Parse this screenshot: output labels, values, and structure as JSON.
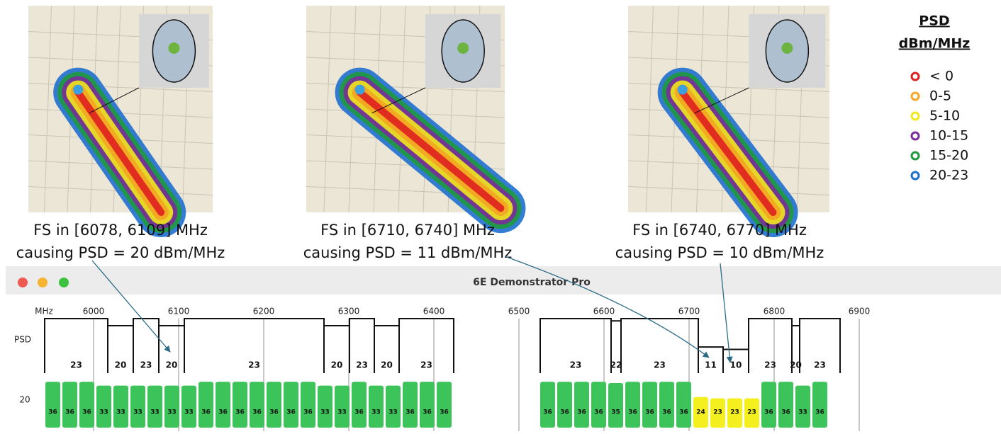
{
  "maps": [
    {
      "caption_line1": "FS in [6078, 6109] MHz",
      "caption_line2": "causing PSD = 20 dBm/MHz"
    },
    {
      "caption_line1": "FS in [6710, 6740] MHz",
      "caption_line2": "causing PSD = 11 dBm/MHz"
    },
    {
      "caption_line1": "FS in [6740, 6770] MHz",
      "caption_line2": "causing PSD = 10 dBm/MHz"
    }
  ],
  "legend": {
    "title": "PSD",
    "unit": "dBm/MHz",
    "items": [
      {
        "label": "< 0",
        "color": "#e02020"
      },
      {
        "label": "0-5",
        "color": "#f5a623"
      },
      {
        "label": "5-10",
        "color": "#f2e81c"
      },
      {
        "label": "10-15",
        "color": "#7b2d9b"
      },
      {
        "label": "15-20",
        "color": "#1f9a3c"
      },
      {
        "label": "20-23",
        "color": "#1f6fd1"
      }
    ]
  },
  "window": {
    "title": "6E Demonstrator Pro",
    "freq_unit": "MHz",
    "freq_labels": [
      "6000",
      "6100",
      "6200",
      "6300",
      "6400",
      "6500",
      "6600",
      "6700",
      "6800",
      "6900"
    ],
    "psd_label": "PSD",
    "row_label": "20",
    "left_psd": [
      23,
      20,
      23,
      20,
      23,
      20,
      23,
      20,
      23
    ],
    "right_psd": [
      23,
      22,
      23,
      11,
      10,
      23,
      20,
      23
    ],
    "left_channels": [
      {
        "value": 36,
        "color": "#3cc35a"
      },
      {
        "value": 36,
        "color": "#3cc35a"
      },
      {
        "value": 36,
        "color": "#3cc35a"
      },
      {
        "value": 33,
        "color": "#3cc35a"
      },
      {
        "value": 33,
        "color": "#3cc35a"
      },
      {
        "value": 33,
        "color": "#3cc35a"
      },
      {
        "value": 33,
        "color": "#3cc35a"
      },
      {
        "value": 33,
        "color": "#3cc35a"
      },
      {
        "value": 33,
        "color": "#3cc35a"
      },
      {
        "value": 36,
        "color": "#3cc35a"
      },
      {
        "value": 36,
        "color": "#3cc35a"
      },
      {
        "value": 36,
        "color": "#3cc35a"
      },
      {
        "value": 36,
        "color": "#3cc35a"
      },
      {
        "value": 36,
        "color": "#3cc35a"
      },
      {
        "value": 36,
        "color": "#3cc35a"
      },
      {
        "value": 36,
        "color": "#3cc35a"
      },
      {
        "value": 33,
        "color": "#3cc35a"
      },
      {
        "value": 33,
        "color": "#3cc35a"
      },
      {
        "value": 36,
        "color": "#3cc35a"
      },
      {
        "value": 33,
        "color": "#3cc35a"
      },
      {
        "value": 33,
        "color": "#3cc35a"
      },
      {
        "value": 36,
        "color": "#3cc35a"
      },
      {
        "value": 36,
        "color": "#3cc35a"
      },
      {
        "value": 36,
        "color": "#3cc35a"
      }
    ],
    "right_channels": [
      {
        "value": 36,
        "color": "#3cc35a"
      },
      {
        "value": 36,
        "color": "#3cc35a"
      },
      {
        "value": 36,
        "color": "#3cc35a"
      },
      {
        "value": 36,
        "color": "#3cc35a"
      },
      {
        "value": 35,
        "color": "#3cc35a"
      },
      {
        "value": 36,
        "color": "#3cc35a"
      },
      {
        "value": 36,
        "color": "#3cc35a"
      },
      {
        "value": 36,
        "color": "#3cc35a"
      },
      {
        "value": 36,
        "color": "#3cc35a"
      },
      {
        "value": 24,
        "color": "#f4ef1e"
      },
      {
        "value": 23,
        "color": "#f4ef1e"
      },
      {
        "value": 23,
        "color": "#f4ef1e"
      },
      {
        "value": 23,
        "color": "#f4ef1e"
      },
      {
        "value": 36,
        "color": "#3cc35a"
      },
      {
        "value": 36,
        "color": "#3cc35a"
      },
      {
        "value": 33,
        "color": "#3cc35a"
      },
      {
        "value": 36,
        "color": "#3cc35a"
      }
    ]
  }
}
